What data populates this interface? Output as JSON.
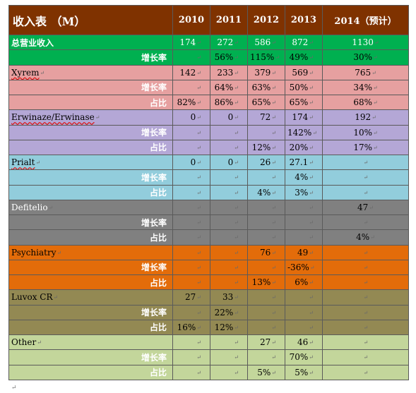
{
  "table": {
    "header": [
      "收入表 （M）",
      "2010",
      "2011",
      "2012",
      "2013",
      "2014（预计）"
    ],
    "para_mark": "↵",
    "rows": [
      {
        "label": "总营业收入",
        "cells": [
          "174",
          "272",
          "586",
          "872",
          "1130"
        ],
        "color": "#00b050",
        "kind": "total"
      },
      {
        "label": "增长率",
        "cells": [
          "",
          "56%",
          "115%",
          "49%",
          "30%"
        ],
        "color": "#00b050",
        "kind": "sub"
      },
      {
        "label": "Xyrem",
        "cells": [
          "142",
          "233",
          "379",
          "569",
          "765"
        ],
        "color": "#e6a0a0",
        "kind": "product",
        "squiggle": true
      },
      {
        "label": "增长率",
        "cells": [
          "",
          "64%",
          "63%",
          "50%",
          "34%"
        ],
        "color": "#e6a0a0",
        "kind": "sub"
      },
      {
        "label": "占比",
        "cells": [
          "82%",
          "86%",
          "65%",
          "65%",
          "68%"
        ],
        "color": "#e6a0a0",
        "kind": "sub"
      },
      {
        "label": "Erwinaze/Erwinase",
        "cells": [
          "0",
          "0",
          "72",
          "174",
          "192"
        ],
        "color": "#b4a7d6",
        "kind": "product",
        "squiggle": true
      },
      {
        "label": "增长率",
        "cells": [
          "",
          "",
          "",
          "142%",
          "10%"
        ],
        "color": "#b4a7d6",
        "kind": "sub"
      },
      {
        "label": "占比",
        "cells": [
          "",
          "",
          "12%",
          "20%",
          "17%"
        ],
        "color": "#b4a7d6",
        "kind": "sub"
      },
      {
        "label": "Prialt",
        "cells": [
          "0",
          "0",
          "26",
          "27.1",
          ""
        ],
        "color": "#92cddc",
        "kind": "product",
        "squiggle": true
      },
      {
        "label": "增长率",
        "cells": [
          "",
          "",
          "",
          "4%",
          ""
        ],
        "color": "#92cddc",
        "kind": "sub"
      },
      {
        "label": "占比",
        "cells": [
          "",
          "",
          "4%",
          "3%",
          ""
        ],
        "color": "#92cddc",
        "kind": "sub"
      },
      {
        "label": "Defitelio",
        "cells": [
          "",
          "",
          "",
          "",
          "47"
        ],
        "color": "#808080",
        "kind": "product"
      },
      {
        "label": "增长率",
        "cells": [
          "",
          "",
          "",
          "",
          ""
        ],
        "color": "#808080",
        "kind": "sub"
      },
      {
        "label": "占比",
        "cells": [
          "",
          "",
          "",
          "",
          "4%"
        ],
        "color": "#808080",
        "kind": "sub"
      },
      {
        "label": "Psychiatry",
        "cells": [
          "",
          "",
          "76",
          "49",
          ""
        ],
        "color": "#e36c0a",
        "kind": "product"
      },
      {
        "label": "增长率",
        "cells": [
          "",
          "",
          "",
          "-36%",
          ""
        ],
        "color": "#e36c0a",
        "kind": "sub"
      },
      {
        "label": "占比",
        "cells": [
          "",
          "",
          "13%",
          "6%",
          ""
        ],
        "color": "#e36c0a",
        "kind": "sub"
      },
      {
        "label": "Luvox CR",
        "cells": [
          "27",
          "33",
          "",
          "",
          ""
        ],
        "color": "#938953",
        "kind": "product"
      },
      {
        "label": "增长率",
        "cells": [
          "",
          "22%",
          "",
          "",
          ""
        ],
        "color": "#938953",
        "kind": "sub"
      },
      {
        "label": "占比",
        "cells": [
          "16%",
          "12%",
          "",
          "",
          ""
        ],
        "color": "#938953",
        "kind": "sub"
      },
      {
        "label": "Other",
        "cells": [
          "",
          "",
          "27",
          "46",
          ""
        ],
        "color": "#c3d69b",
        "kind": "product"
      },
      {
        "label": "增长率",
        "cells": [
          "",
          "",
          "",
          "70%",
          ""
        ],
        "color": "#c3d69b",
        "kind": "sub"
      },
      {
        "label": "占比",
        "cells": [
          "",
          "",
          "5%",
          "5%",
          ""
        ],
        "color": "#c3d69b",
        "kind": "sub"
      }
    ]
  }
}
